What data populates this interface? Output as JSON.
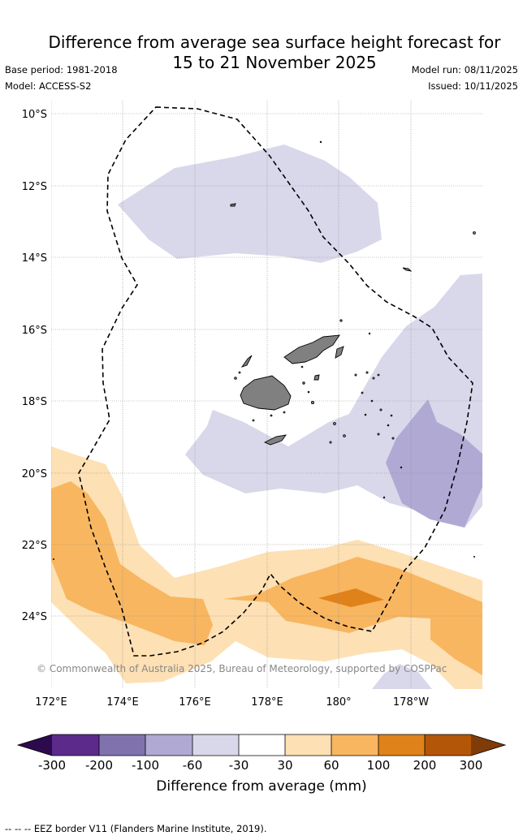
{
  "title_line1": "Difference from average sea surface height forecast for",
  "title_line2": "15 to 21 November 2025",
  "base_period": "Base period: 1981-2018",
  "model": "Model: ACCESS-S2",
  "model_run": "Model run: 08/11/2025",
  "issued": "Issued: 10/11/2025",
  "map": {
    "lat_labels": [
      "10°S",
      "12°S",
      "14°S",
      "16°S",
      "18°S",
      "20°S",
      "22°S",
      "24°S"
    ],
    "lon_labels": [
      "172°E",
      "174°E",
      "176°E",
      "178°E",
      "180°",
      "178°W"
    ],
    "credit": "© Commonwealth of Australia 2025, Bureau of Meteorology, supported by COSPPac",
    "land_color": "#808080",
    "eez_style": "dashed black line"
  },
  "colorbar": {
    "title": "Difference from average (mm)",
    "ticks": [
      "-300",
      "-200",
      "-100",
      "-60",
      "-30",
      "30",
      "60",
      "100",
      "200",
      "300"
    ],
    "colors": [
      "#2d0a4e",
      "#5c2a8a",
      "#8073ad",
      "#b0a9d4",
      "#d8d8ea",
      "#ffffff",
      "#fde0b4",
      "#f8b660",
      "#e0821a",
      "#b45608",
      "#7f3b08"
    ]
  },
  "footer": "--  --  -- EEZ border V11 (Flanders Marine Institute, 2019)."
}
